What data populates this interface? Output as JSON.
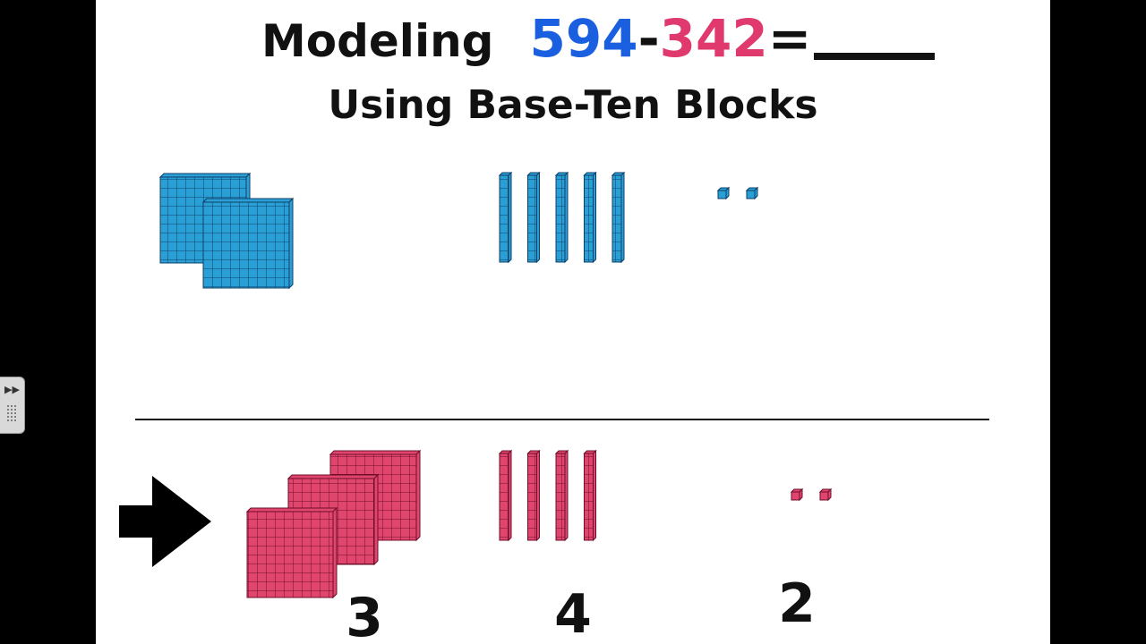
{
  "title": {
    "word": "Modeling",
    "minuend": "594",
    "operator": "-",
    "subtrahend": "342",
    "equals": "="
  },
  "subtitle": "Using Base-Ten Blocks",
  "digits": {
    "hundreds": "3",
    "tens": "4",
    "ones": "2"
  },
  "model": {
    "top": {
      "hundreds": 2,
      "tens": 5,
      "ones": 2
    },
    "bottom": {
      "hundreds": 3,
      "tens": 4,
      "ones": 2
    }
  },
  "colors": {
    "minuend": "#1a5fe0",
    "subtrahend": "#e0396e",
    "blue_block": "#2a9fd6",
    "pink_block": "#e0456e",
    "arrow": "#000000"
  }
}
